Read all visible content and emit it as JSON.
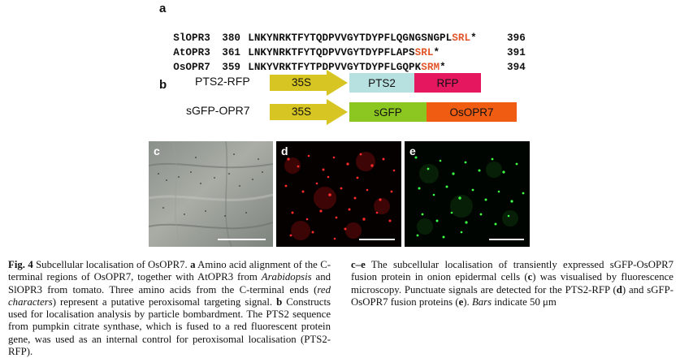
{
  "panels": {
    "a": "a",
    "b": "b",
    "c": "c",
    "d": "d",
    "e": "e"
  },
  "alignment": [
    {
      "name": "SlOPR3",
      "start": "380",
      "seq": "LNKYNRKTFYTQDPVVGYTDYPFLQGNGSNGPL",
      "red": "SRL",
      "star": "*",
      "end": "396"
    },
    {
      "name": "AtOPR3",
      "start": "361",
      "seq": "LNKYNRKTFYTQDPVVGYTDYPFLAPS",
      "red": "SRL",
      "star": "*",
      "end": "391"
    },
    {
      "name": "OsOPR7",
      "start": "359",
      "seq": "LNKYVRKTFYTPDPVVGYTDYPFLGQPK",
      "red": "SRM",
      "star": "*",
      "end": "394"
    }
  ],
  "constructs": [
    {
      "name": "PTS2-RFP",
      "promoter": "35S",
      "parts": [
        "PTS2",
        "RFP"
      ]
    },
    {
      "name": "sGFP-OPR7",
      "promoter": "35S",
      "parts": [
        "sGFP",
        "OsOPR7"
      ]
    }
  ],
  "colors": {
    "promoter_arrow": "#d6c522",
    "pts2": "#b7e0e1",
    "rfp": "#e5185f",
    "sgfp": "#8cc620",
    "osopr7": "#ef5c12",
    "alignment_red": "#e2552a"
  },
  "caption": {
    "fig": "Fig. 4",
    "title": "Subcellular localisation of OsOPR7.",
    "a_label": "a",
    "t1": "Amino acid alignment of the C-terminal regions of OsOPR7, together with AtOPR3 from",
    "arabidopsis": "Arabidopsis",
    "t2": "and SlOPR3 from tomato. Three amino acids from the C-terminal ends (",
    "red_characters": "red characters",
    "t3": ") represent a putative peroxisomal targeting signal.",
    "b_label": "b",
    "t4": "Constructs used for localisation analysis by particle bombardment. The PTS2 sequence from pumpkin citrate synthase, which is fused to a red fluorescent protein gene, was used as an internal control for peroxisomal localisation (PTS2-RFP).",
    "ce_label": "c–e",
    "t5": "The subcellular localisation of transiently expressed sGFP-OsOPR7 fusion protein in onion epidermal cells (",
    "c": "c",
    "t6": ") was visualised by fluorescence microscopy. Punctuate signals are detected for the PTS2-RFP (",
    "d": "d",
    "t7": ") and sGFP-OsOPR7 fusion proteins (",
    "e": "e",
    "t8": ").",
    "bars": "Bars",
    "t9": "indicate 50 μm"
  }
}
